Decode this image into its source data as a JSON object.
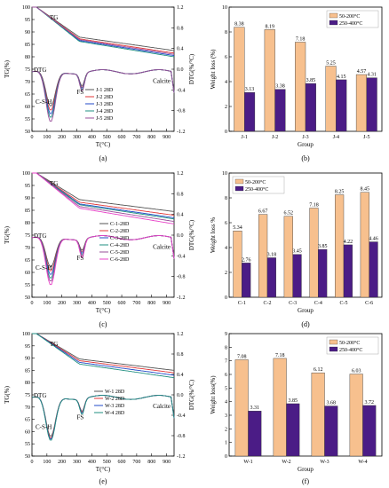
{
  "colors": {
    "bar_a": "#f7c08e",
    "bar_b": "#4b1c86",
    "j_series": [
      "#555555",
      "#e0383a",
      "#2048c8",
      "#1f8f80",
      "#9a4f9a"
    ],
    "c_series": [
      "#555555",
      "#e0383a",
      "#2048c8",
      "#1f8f80",
      "#9a4f9a",
      "#e843c8"
    ],
    "w_series": [
      "#555555",
      "#e0383a",
      "#2048c8",
      "#1f8f80"
    ]
  },
  "panel_labels": [
    "(a)",
    "(b)",
    "(c)",
    "(d)",
    "(e)",
    "(f)"
  ],
  "chart_data": [
    {
      "id": "a",
      "type": "line",
      "xlabel": "T(°C)",
      "ylabel": "TG(%)",
      "y2label": "DTG(%/°C)",
      "xlim": [
        0,
        950
      ],
      "ylim": [
        50,
        100
      ],
      "y2lim": [
        -1.2,
        1.2
      ],
      "x_ticks": [
        0,
        100,
        200,
        300,
        400,
        500,
        600,
        700,
        800,
        900
      ],
      "y_ticks": [
        50,
        55,
        60,
        65,
        70,
        75,
        80,
        85,
        90,
        95,
        100
      ],
      "y2_ticks": [
        -1.2,
        -0.8,
        -0.4,
        0.0,
        0.4,
        0.8,
        1.2
      ],
      "annotations": [
        "TG",
        "DTG",
        "C-S-H",
        "FS",
        "Calcite"
      ],
      "series": [
        {
          "name": "J-1 28D",
          "tg_end": 82.5,
          "dtg_csh": -0.7,
          "dtg_fs": -0.25
        },
        {
          "name": "J-2 28D",
          "tg_end": 81.5,
          "dtg_csh": -0.78,
          "dtg_fs": -0.28
        },
        {
          "name": "J-3 28D",
          "tg_end": 80.5,
          "dtg_csh": -0.85,
          "dtg_fs": -0.3
        },
        {
          "name": "J-4 28D",
          "tg_end": 80.0,
          "dtg_csh": -0.92,
          "dtg_fs": -0.33
        },
        {
          "name": "J-5 28D",
          "tg_end": 81.0,
          "dtg_csh": -1.0,
          "dtg_fs": -0.35
        }
      ]
    },
    {
      "id": "b",
      "type": "bar",
      "xlabel": "Group",
      "ylabel": "Weight loss (%)",
      "ylim": [
        0,
        10
      ],
      "y_ticks": [
        0,
        2,
        4,
        6,
        8,
        10
      ],
      "categories": [
        "J-1",
        "J-2",
        "J-3",
        "J-4",
        "J-5"
      ],
      "series": [
        {
          "name": "50-200°C",
          "values": [
            8.38,
            8.19,
            7.18,
            5.25,
            4.57
          ]
        },
        {
          "name": "250-400°C",
          "values": [
            3.13,
            3.38,
            3.85,
            4.15,
            4.31
          ]
        }
      ],
      "legend": "top-right"
    },
    {
      "id": "c",
      "type": "line",
      "xlabel": "T(°C)",
      "ylabel": "TG(%)",
      "y2label": "DTG(%/°C)",
      "xlim": [
        0,
        950
      ],
      "ylim": [
        50,
        100
      ],
      "y2lim": [
        -1.2,
        1.2
      ],
      "x_ticks": [
        0,
        100,
        200,
        300,
        400,
        500,
        600,
        700,
        800,
        900
      ],
      "y_ticks": [
        50,
        55,
        60,
        65,
        70,
        75,
        80,
        85,
        90,
        95,
        100
      ],
      "y2_ticks": [
        -1.2,
        -0.8,
        -0.4,
        0.0,
        0.4,
        0.8,
        1.2
      ],
      "annotations": [
        "TG",
        "DTG",
        "C-S-H",
        "FS",
        "Calcite"
      ],
      "series": [
        {
          "name": "C-1-28D",
          "tg_end": 84.5,
          "dtg_csh": -0.6,
          "dtg_fs": -0.22
        },
        {
          "name": "C-2-28D",
          "tg_end": 83.0,
          "dtg_csh": -0.68,
          "dtg_fs": -0.25
        },
        {
          "name": "C-3-28D",
          "tg_end": 82.0,
          "dtg_csh": -0.75,
          "dtg_fs": -0.28
        },
        {
          "name": "C-4-28D",
          "tg_end": 81.5,
          "dtg_csh": -0.82,
          "dtg_fs": -0.31
        },
        {
          "name": "C-5-28D",
          "tg_end": 80.5,
          "dtg_csh": -0.88,
          "dtg_fs": -0.34
        },
        {
          "name": "C-6-28D",
          "tg_end": 79.5,
          "dtg_csh": -0.95,
          "dtg_fs": -0.37
        }
      ]
    },
    {
      "id": "d",
      "type": "bar",
      "xlabel": "Group",
      "ylabel": "Weight loss %",
      "ylim": [
        0,
        10
      ],
      "y_ticks": [
        0,
        2,
        4,
        6,
        8,
        10
      ],
      "categories": [
        "C-1",
        "C-2",
        "C-3",
        "C-4",
        "C-5",
        "C-6"
      ],
      "series": [
        {
          "name": "50-200°C",
          "values": [
            5.34,
            6.67,
            6.52,
            7.18,
            8.25,
            8.45
          ]
        },
        {
          "name": "250-400°C",
          "values": [
            2.76,
            3.18,
            3.45,
            3.85,
            4.22,
            4.46
          ]
        }
      ],
      "legend": "top-left"
    },
    {
      "id": "e",
      "type": "line",
      "xlabel": "T(°C)",
      "ylabel": "TG(%)",
      "y2label": "DTG(%/°C)",
      "xlim": [
        0,
        950
      ],
      "ylim": [
        50,
        100
      ],
      "y2lim": [
        -1.2,
        1.2
      ],
      "x_ticks": [
        0,
        100,
        200,
        300,
        400,
        500,
        600,
        700,
        800,
        900
      ],
      "y_ticks": [
        50,
        55,
        60,
        65,
        70,
        75,
        80,
        85,
        90,
        95,
        100
      ],
      "y2_ticks": [
        -1.2,
        -0.8,
        -0.4,
        0.0,
        0.4,
        0.8,
        1.2
      ],
      "annotations": [
        "TG",
        "DTG",
        "C-S-H",
        "FS",
        "Calcite"
      ],
      "series": [
        {
          "name": "W-1 28D",
          "tg_end": 85.0,
          "dtg_csh": -0.8,
          "dtg_fs": -0.25
        },
        {
          "name": "W-2 28D",
          "tg_end": 84.0,
          "dtg_csh": -0.84,
          "dtg_fs": -0.27
        },
        {
          "name": "W-3 28D",
          "tg_end": 83.0,
          "dtg_csh": -0.86,
          "dtg_fs": -0.29
        },
        {
          "name": "W-4 28D",
          "tg_end": 82.0,
          "dtg_csh": -0.88,
          "dtg_fs": -0.31
        }
      ]
    },
    {
      "id": "f",
      "type": "bar",
      "xlabel": "Group",
      "ylabel": "Weight loss(%)",
      "ylim": [
        0,
        9
      ],
      "y_ticks": [
        0,
        1,
        2,
        3,
        4,
        5,
        6,
        7,
        8,
        9
      ],
      "categories": [
        "W-1",
        "W-2",
        "W-3",
        "W-4"
      ],
      "series": [
        {
          "name": "50-200°C",
          "values": [
            7.08,
            7.18,
            6.12,
            6.03
          ]
        },
        {
          "name": "250-400°C",
          "values": [
            3.31,
            3.85,
            3.68,
            3.72
          ]
        }
      ],
      "legend": "top-right"
    }
  ]
}
